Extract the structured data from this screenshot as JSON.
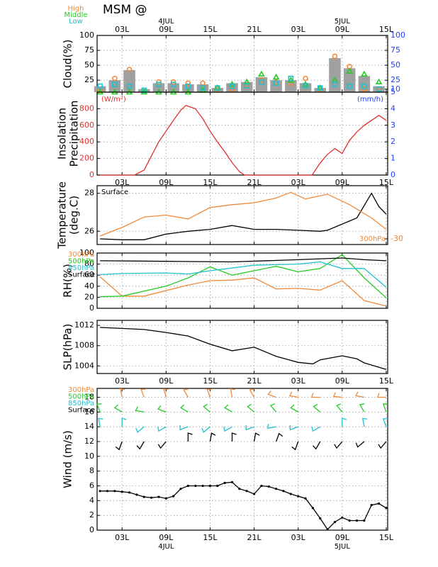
{
  "title": "MSM  @",
  "chart_data": [
    {
      "type": "bar",
      "ylabel": "Cloud(%)",
      "xlim": [
        -0.4,
        39.2
      ],
      "ylim": [
        5,
        100
      ],
      "yticks": [
        25,
        50,
        75,
        100
      ],
      "y2lim": [
        5,
        100
      ],
      "y2ticks": [
        5,
        10,
        25,
        50,
        75,
        100
      ],
      "y2color": "#2040ff",
      "grid": true,
      "legend": "outside-top-left",
      "xlabel_side": "top",
      "xticks": [
        {
          "value": 3,
          "label": "03L"
        },
        {
          "value": 9,
          "label": "09L"
        },
        {
          "value": 15,
          "label": "15L"
        },
        {
          "value": 21,
          "label": "21L"
        },
        {
          "value": 27,
          "label": "03L"
        },
        {
          "value": 33,
          "label": "09L"
        },
        {
          "value": 39,
          "label": "15L"
        }
      ],
      "date_labels": [
        {
          "value": 9,
          "label": "4JUL"
        },
        {
          "value": 33,
          "label": "5JUL"
        }
      ],
      "series": [
        {
          "color": "#a0a0a0",
          "marker": "bar",
          "x": [
            0,
            2,
            4,
            6,
            8,
            10,
            12,
            14,
            16,
            18,
            20,
            22,
            24,
            26,
            28,
            30,
            32,
            34,
            36,
            38
          ],
          "values": [
            15,
            25,
            42,
            10,
            20,
            20,
            18,
            18,
            12,
            20,
            22,
            30,
            25,
            25,
            20,
            12,
            62,
            45,
            32,
            15
          ]
        },
        {
          "name": "High",
          "color": "#f08a3a",
          "marker": "circle",
          "x": [
            0,
            2,
            4,
            6,
            8,
            10,
            12,
            14,
            16,
            18,
            20,
            22,
            24,
            26,
            28,
            30,
            32,
            34,
            36,
            38
          ],
          "values": [
            8,
            28,
            43,
            8,
            22,
            22,
            20,
            20,
            8,
            10,
            18,
            25,
            22,
            20,
            28,
            10,
            65,
            48,
            10,
            8
          ]
        },
        {
          "name": "Middle",
          "color": "#22cc22",
          "marker": "triangle",
          "x": [
            0,
            2,
            4,
            6,
            8,
            10,
            12,
            14,
            16,
            18,
            20,
            22,
            24,
            26,
            28,
            30,
            32,
            34,
            36,
            38
          ],
          "values": [
            5,
            5,
            5,
            5,
            5,
            5,
            5,
            8,
            12,
            18,
            22,
            35,
            30,
            25,
            18,
            12,
            25,
            40,
            35,
            22
          ]
        },
        {
          "name": "Low",
          "color": "#20c0d0",
          "marker": "square",
          "x": [
            0,
            2,
            4,
            6,
            8,
            10,
            12,
            14,
            16,
            18,
            20,
            22,
            24,
            26,
            28,
            30,
            32,
            34,
            36,
            38
          ],
          "values": [
            15,
            18,
            15,
            8,
            18,
            18,
            15,
            12,
            12,
            15,
            16,
            22,
            20,
            28,
            16,
            12,
            18,
            15,
            15,
            10
          ]
        }
      ]
    },
    {
      "type": "line",
      "ylabel": [
        "Insolation",
        "Precipitation"
      ],
      "ylabel_unit": "(W/m²)",
      "y2label_unit": "(mm/h)",
      "xlim": [
        -0.4,
        39.2
      ],
      "ylim": [
        0,
        1000
      ],
      "yticks": [
        0,
        200,
        400,
        600,
        800
      ],
      "ycolor": "#e03030",
      "y2lim": [
        0,
        5
      ],
      "y2ticks": [
        0,
        1,
        2,
        3,
        4
      ],
      "y2color": "#2040ff",
      "grid": true,
      "xlabel_side": "bottom",
      "xticks": [
        {
          "value": 3,
          "label": "03L"
        },
        {
          "value": 9,
          "label": "09L"
        },
        {
          "value": 15,
          "label": "15L"
        },
        {
          "value": 21,
          "label": "21L"
        },
        {
          "value": 27,
          "label": "03L"
        },
        {
          "value": 33,
          "label": "09L"
        },
        {
          "value": 39,
          "label": "15L"
        }
      ],
      "series": [
        {
          "color": "#e03030",
          "x": [
            0,
            4.7,
            6,
            7,
            8,
            9,
            10,
            11,
            11.7,
            12,
            13,
            14,
            15,
            16,
            17,
            18,
            19,
            19.7,
            28.9,
            30,
            31,
            32,
            33,
            34,
            35,
            36,
            37,
            38,
            39
          ],
          "values": [
            0,
            0,
            60,
            230,
            400,
            530,
            660,
            780,
            840,
            830,
            800,
            680,
            530,
            400,
            280,
            150,
            40,
            0,
            0,
            146,
            250,
            320,
            260,
            420,
            520,
            600,
            660,
            720,
            660
          ]
        }
      ]
    },
    {
      "type": "line",
      "ylabel": [
        "Temperature",
        "(deg.C)"
      ],
      "xlim": [
        -0.4,
        39.2
      ],
      "ylim": [
        25.3,
        28.4
      ],
      "yticks": [
        26,
        28
      ],
      "y2lim": [
        -30.3,
        -27.2
      ],
      "y2ticks": [
        -30
      ],
      "y2color": "#f08a3a",
      "grid": true,
      "legend": "inline",
      "xticks": [
        3,
        9,
        15,
        21,
        27,
        33,
        39
      ],
      "series": [
        {
          "name": "Surface",
          "color": "#000000",
          "x": [
            0,
            3,
            6,
            9,
            12,
            15,
            18,
            21,
            24,
            27,
            30,
            31,
            35,
            37,
            38,
            39
          ],
          "values": [
            25.6,
            25.55,
            25.55,
            25.85,
            26.0,
            26.1,
            26.3,
            26.1,
            26.1,
            26.05,
            26.0,
            26.05,
            26.7,
            28.0,
            27.3,
            26.9
          ]
        },
        {
          "name": "300hPa",
          "color": "#f08a3a",
          "axis": "y2",
          "x": [
            0,
            3,
            6,
            9,
            12,
            15,
            18,
            21,
            24,
            26,
            28,
            31,
            34,
            37,
            39
          ],
          "values": [
            -29.85,
            -29.4,
            -28.85,
            -28.75,
            -28.95,
            -28.35,
            -28.2,
            -28.1,
            -27.85,
            -27.55,
            -27.9,
            -27.65,
            -28.2,
            -28.9,
            -29.5
          ]
        }
      ]
    },
    {
      "type": "line",
      "ylabel": "RH(%)",
      "xlim": [
        -0.4,
        39.2
      ],
      "ylim": [
        0,
        100
      ],
      "yticks": [
        0,
        20,
        40,
        60,
        80,
        100
      ],
      "grid": true,
      "legend": "outside-left",
      "xticks": [
        3,
        9,
        15,
        21,
        27,
        33,
        39
      ],
      "series": [
        {
          "name": "300hPa",
          "color": "#f08a3a",
          "x": [
            0,
            3,
            6,
            12,
            15,
            18,
            21,
            24,
            27,
            30,
            33,
            36,
            39
          ],
          "values": [
            57,
            22,
            22,
            42,
            50,
            51,
            55,
            35,
            36,
            33,
            50,
            14,
            4
          ]
        },
        {
          "name": "500hPa",
          "color": "#22cc22",
          "x": [
            0,
            3,
            9,
            12,
            15,
            18,
            24,
            27,
            30,
            33,
            36,
            39
          ],
          "values": [
            21,
            22,
            40,
            55,
            75,
            60,
            76,
            66,
            72,
            97,
            55,
            19
          ]
        },
        {
          "name": "850hPa",
          "color": "#20c0d0",
          "x": [
            0,
            3,
            9,
            12,
            15,
            21,
            27,
            30,
            33,
            36,
            39
          ],
          "values": [
            61,
            63,
            64,
            62,
            68,
            78,
            80,
            84,
            72,
            72,
            38
          ]
        },
        {
          "name": "Surface",
          "color": "#000000",
          "x": [
            0,
            9,
            18,
            27,
            33,
            36,
            39
          ],
          "values": [
            86,
            85,
            84,
            88,
            91,
            88,
            86
          ]
        }
      ]
    },
    {
      "type": "line",
      "ylabel": "SLP(hPa)",
      "xlim": [
        -0.4,
        39.2
      ],
      "ylim": [
        1002.5,
        1013
      ],
      "yticks": [
        1004,
        1008,
        1012
      ],
      "grid": true,
      "xlabel_side": "bottom",
      "xticks": [
        {
          "value": 3,
          "label": "03L"
        },
        {
          "value": 9,
          "label": "09L"
        },
        {
          "value": 15,
          "label": "15L"
        },
        {
          "value": 21,
          "label": "21L"
        },
        {
          "value": 27,
          "label": "03L"
        },
        {
          "value": 33,
          "label": "09L"
        },
        {
          "value": 39,
          "label": "15L"
        }
      ],
      "series": [
        {
          "color": "#000000",
          "x": [
            0,
            3,
            6,
            9,
            12,
            15,
            18,
            21,
            24,
            27,
            29,
            30,
            33,
            35,
            36,
            39
          ],
          "values": [
            1011.6,
            1011.4,
            1011.2,
            1010.6,
            1009.9,
            1008.3,
            1007.0,
            1007.7,
            1005.9,
            1004.7,
            1004.4,
            1005.2,
            1006.0,
            1005.4,
            1004.6,
            1003.3
          ]
        }
      ]
    },
    {
      "type": "line",
      "ylabel": "Wind  (m/s)",
      "xlim": [
        -0.4,
        39.2
      ],
      "ylim": [
        0,
        19.2
      ],
      "yticks": [
        0,
        2,
        4,
        6,
        8,
        10,
        12,
        14,
        16,
        18
      ],
      "grid": true,
      "legend": "outside-left",
      "xlabel_side": "bottom",
      "xticks": [
        {
          "value": 3,
          "label": "03L"
        },
        {
          "value": 9,
          "label": "09L"
        },
        {
          "value": 15,
          "label": "15L"
        },
        {
          "value": 21,
          "label": "21L"
        },
        {
          "value": 27,
          "label": "03L"
        },
        {
          "value": 33,
          "label": "09L"
        },
        {
          "value": 39,
          "label": "15L"
        }
      ],
      "date_labels": [
        {
          "value": 9,
          "label": "4JUL"
        },
        {
          "value": 33,
          "label": "5JUL"
        }
      ],
      "barbs": [
        {
          "name": "300hPa",
          "color": "#f08a3a",
          "level": 18,
          "x": [
            3,
            6,
            9,
            12,
            15,
            18,
            21,
            24,
            27,
            30,
            33,
            36,
            39
          ],
          "directions": [
            350,
            340,
            345,
            330,
            340,
            350,
            330,
            290,
            280,
            270,
            275,
            280,
            270
          ]
        },
        {
          "name": "500hPa",
          "color": "#22cc22",
          "level": 16,
          "x": [
            0,
            3,
            6,
            9,
            12,
            15,
            18,
            21,
            24,
            27,
            30,
            33,
            36,
            39
          ],
          "directions": [
            340,
            300,
            280,
            290,
            300,
            310,
            300,
            310,
            320,
            300,
            310,
            320,
            330,
            340
          ]
        },
        {
          "name": "850hPa",
          "color": "#20c0d0",
          "level": 14,
          "x": [
            0,
            3,
            6,
            9,
            12,
            15,
            18,
            21,
            24,
            27,
            30,
            33,
            36,
            39
          ],
          "directions": [
            350,
            0,
            230,
            240,
            250,
            230,
            240,
            250,
            260,
            250,
            240,
            0,
            350,
            340
          ]
        },
        {
          "name": "Surface",
          "color": "#000000",
          "level": 12,
          "x": [
            3,
            6,
            9,
            12,
            15,
            18,
            21,
            24,
            27,
            30,
            33,
            36,
            39
          ],
          "directions": [
            200,
            210,
            220,
            0,
            10,
            0,
            10,
            20,
            200,
            210,
            220,
            230,
            220
          ]
        }
      ],
      "series": [
        {
          "color": "#000000",
          "marker": "dot",
          "x": [
            0,
            1,
            2,
            3,
            4,
            5,
            6,
            7,
            8,
            9,
            10,
            11,
            12,
            13,
            14,
            15,
            16,
            17,
            18,
            19,
            20,
            21,
            22,
            23,
            24,
            25,
            26,
            27,
            28,
            29,
            30,
            31,
            32,
            33,
            34,
            35,
            36,
            37,
            38,
            39
          ],
          "values": [
            5.3,
            5.3,
            5.3,
            5.2,
            5.1,
            4.8,
            4.5,
            4.4,
            4.5,
            4.3,
            4.6,
            5.6,
            6.0,
            6.0,
            6.0,
            6.0,
            6.0,
            6.4,
            6.5,
            5.6,
            5.3,
            4.9,
            6.0,
            5.9,
            5.6,
            5.3,
            4.9,
            4.6,
            4.3,
            3.0,
            1.6,
            0.1,
            1.1,
            1.7,
            1.3,
            1.3,
            1.3,
            3.4,
            3.6,
            3.0
          ]
        }
      ]
    }
  ]
}
